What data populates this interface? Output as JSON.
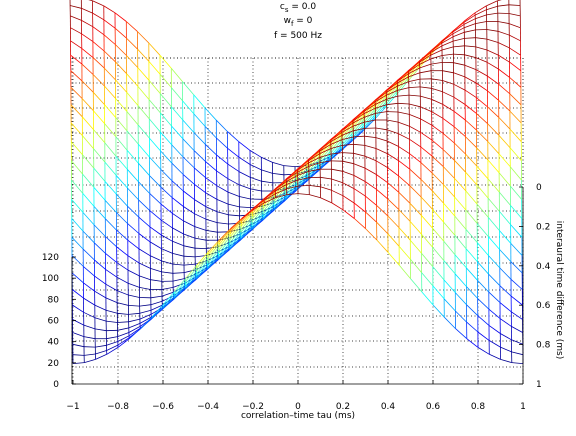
{
  "title_lines": [
    "c",
    "= 0.0",
    "w",
    "= 0",
    "f = 500 Hz"
  ],
  "title_line1": {
    "base": "c",
    "sub": "s",
    "rest": " = 0.0"
  },
  "title_line2": {
    "base": "w",
    "sub": "f",
    "rest": " = 0"
  },
  "title_line3": "f = 500 Hz",
  "chart_data": {
    "type": "mesh3d",
    "title": "c_s = 0.0, w_f = 0, f = 500 Hz",
    "xlabel": "correlation–time tau (ms)",
    "ylabel": "interaural time difference (ms)",
    "zlabel": "",
    "x_ticks": [
      "−1",
      "−0.8",
      "−0.6",
      "−0.4",
      "−0.2",
      "0",
      "0.2",
      "0.4",
      "0.6",
      "0.8",
      "1"
    ],
    "y_ticks": [
      "0",
      "0.2",
      "0.4",
      "0.6",
      "0.8",
      "1"
    ],
    "z_ticks": [
      "0",
      "20",
      "40",
      "60",
      "80",
      "100",
      "120"
    ],
    "xlim": [
      -1,
      1
    ],
    "ylim": [
      0,
      1
    ],
    "zlim": [
      0,
      120
    ],
    "grid": true,
    "colormap": "jet",
    "surface": "z = 62 + 50*cos(2*pi*f*(tau - itd)), f = 0.5 kHz, tau in ms, itd in ms",
    "tau_samples": 41,
    "itd_samples": 25
  },
  "colors": {
    "low": "#00008f",
    "high": "#800000",
    "grid": "#000000"
  }
}
